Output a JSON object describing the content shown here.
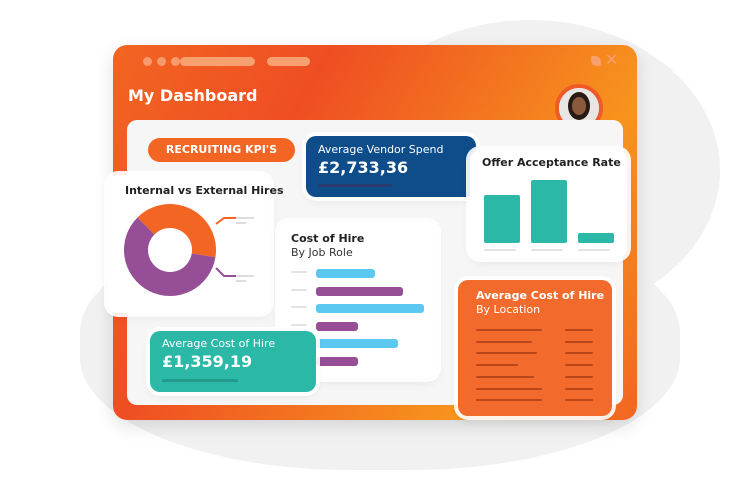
{
  "window": {
    "title": "My Dashboard",
    "avatar_alt": "user-avatar"
  },
  "kpi_label": "RECRUITING KPI'S",
  "vendor": {
    "label": "Average Vendor Spend",
    "value": "£2,733,36"
  },
  "offer": {
    "title": "Offer Acceptance Rate",
    "bars": [
      0.48,
      0.63,
      0.1
    ]
  },
  "hires": {
    "title": "Internal vs External Hires",
    "slices": [
      {
        "share": 0.4,
        "color": "#f26522"
      },
      {
        "share": 0.6,
        "color": "#964f97"
      }
    ]
  },
  "cost_role": {
    "title": "Cost of Hire",
    "subtitle": "By Job Role",
    "bars": [
      {
        "value": 0.55,
        "color": "#5bc8f0"
      },
      {
        "value": 0.81,
        "color": "#964f97"
      },
      {
        "value": 1.0,
        "color": "#5bc8f0"
      },
      {
        "value": 0.39,
        "color": "#964f97"
      },
      {
        "value": 0.76,
        "color": "#5bc8f0"
      },
      {
        "value": 0.39,
        "color": "#964f97"
      }
    ]
  },
  "avg_cost": {
    "label": "Average Cost of Hire",
    "value": "£1,359,19"
  },
  "cost_location": {
    "title": "Average Cost of Hire",
    "subtitle": "By Location"
  },
  "colors": {
    "orange": "#f26522",
    "blue": "#0f4c8a",
    "teal": "#2bb8a6",
    "purple": "#964f97",
    "light_blue": "#5bc8f0"
  }
}
